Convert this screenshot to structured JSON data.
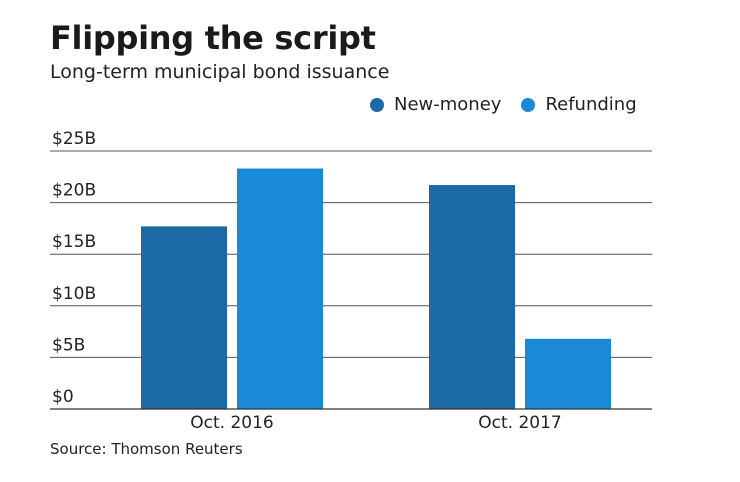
{
  "title": "Flipping the script",
  "subtitle": "Long-term municipal bond issuance",
  "source": "Source: Thomson Reuters",
  "colors": {
    "new_money": "#1b6aa5",
    "refunding": "#1b8ad6",
    "gridline": "#555555"
  },
  "chart_data": {
    "type": "bar",
    "categories": [
      "Oct. 2016",
      "Oct. 2017"
    ],
    "series": [
      {
        "name": "New-money",
        "values": [
          17.7,
          21.7
        ]
      },
      {
        "name": "Refunding",
        "values": [
          23.3,
          6.8
        ]
      }
    ],
    "ylim": [
      0,
      25
    ],
    "yticks": [
      0,
      5,
      10,
      15,
      20,
      25
    ],
    "ytick_labels": [
      "$0",
      "$5B",
      "$10B",
      "$15B",
      "$20B",
      "$25B"
    ],
    "unit": "$B",
    "grid": true,
    "legend_position": "top-right"
  }
}
